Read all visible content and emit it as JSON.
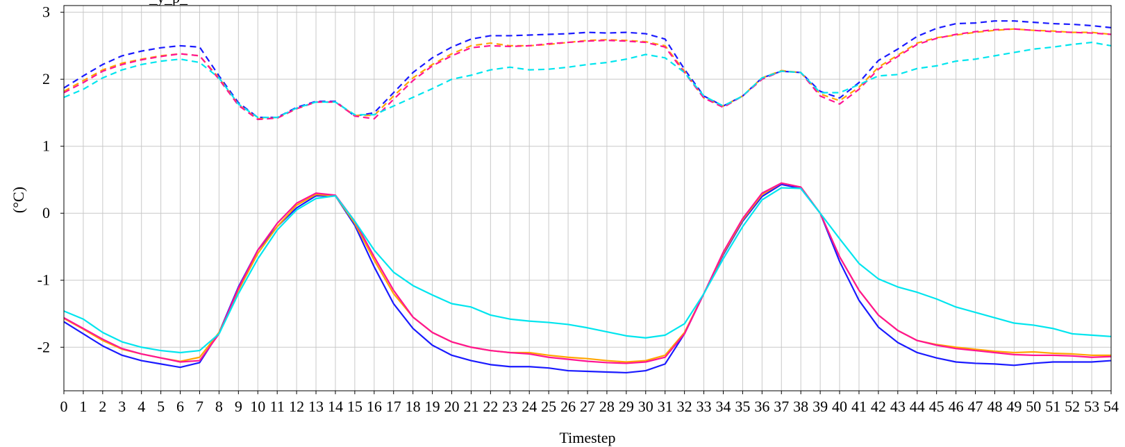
{
  "chart_data": {
    "type": "line",
    "title": "",
    "title_partial": "_y_p_",
    "xlabel": "Timestep",
    "ylabel": "(°C)",
    "x": [
      0,
      1,
      2,
      3,
      4,
      5,
      6,
      7,
      8,
      9,
      10,
      11,
      12,
      13,
      14,
      15,
      16,
      17,
      18,
      19,
      20,
      21,
      22,
      23,
      24,
      25,
      26,
      27,
      28,
      29,
      30,
      31,
      32,
      33,
      34,
      35,
      36,
      37,
      38,
      39,
      40,
      41,
      42,
      43,
      44,
      45,
      46,
      47,
      48,
      49,
      50,
      51,
      52,
      53,
      54
    ],
    "xlim": [
      0,
      54
    ],
    "ylim": [
      -2.65,
      3.1
    ],
    "yticks": [
      -2,
      -1,
      0,
      1,
      2,
      3
    ],
    "grid": true,
    "series": [
      {
        "color": "#1a1aff",
        "style": "dashed",
        "values": [
          1.87,
          2.05,
          2.22,
          2.35,
          2.42,
          2.47,
          2.5,
          2.48,
          2.05,
          1.65,
          1.43,
          1.43,
          1.58,
          1.67,
          1.67,
          1.45,
          1.5,
          1.8,
          2.1,
          2.32,
          2.48,
          2.6,
          2.65,
          2.65,
          2.66,
          2.67,
          2.68,
          2.7,
          2.69,
          2.7,
          2.68,
          2.6,
          2.15,
          1.75,
          1.6,
          1.75,
          2.02,
          2.12,
          2.1,
          1.82,
          1.72,
          1.95,
          2.28,
          2.45,
          2.64,
          2.76,
          2.83,
          2.84,
          2.87,
          2.87,
          2.85,
          2.83,
          2.82,
          2.8,
          2.77
        ]
      },
      {
        "color": "#ffa500",
        "style": "dashed",
        "values": [
          1.82,
          1.98,
          2.14,
          2.24,
          2.3,
          2.35,
          2.38,
          2.35,
          2.02,
          1.62,
          1.41,
          1.42,
          1.56,
          1.66,
          1.66,
          1.46,
          1.46,
          1.75,
          2.02,
          2.22,
          2.38,
          2.5,
          2.54,
          2.5,
          2.5,
          2.52,
          2.55,
          2.58,
          2.59,
          2.58,
          2.56,
          2.5,
          2.12,
          1.72,
          1.6,
          1.75,
          2.02,
          2.13,
          2.1,
          1.78,
          1.68,
          1.88,
          2.18,
          2.36,
          2.54,
          2.62,
          2.66,
          2.7,
          2.73,
          2.75,
          2.73,
          2.72,
          2.7,
          2.7,
          2.67
        ]
      },
      {
        "color": "#ff1493",
        "style": "dashed",
        "values": [
          1.8,
          1.95,
          2.12,
          2.22,
          2.29,
          2.34,
          2.38,
          2.35,
          2.0,
          1.61,
          1.4,
          1.42,
          1.56,
          1.66,
          1.66,
          1.45,
          1.41,
          1.7,
          1.98,
          2.2,
          2.35,
          2.47,
          2.5,
          2.49,
          2.5,
          2.53,
          2.55,
          2.57,
          2.58,
          2.57,
          2.55,
          2.48,
          2.1,
          1.72,
          1.58,
          1.75,
          2.0,
          2.12,
          2.1,
          1.75,
          1.63,
          1.85,
          2.15,
          2.34,
          2.52,
          2.61,
          2.67,
          2.71,
          2.74,
          2.75,
          2.73,
          2.71,
          2.7,
          2.69,
          2.67
        ]
      },
      {
        "color": "#00e5ee",
        "style": "dashed",
        "values": [
          1.73,
          1.85,
          2.02,
          2.14,
          2.22,
          2.27,
          2.3,
          2.25,
          2.02,
          1.63,
          1.43,
          1.43,
          1.57,
          1.66,
          1.66,
          1.47,
          1.47,
          1.6,
          1.73,
          1.86,
          2.0,
          2.06,
          2.14,
          2.18,
          2.14,
          2.15,
          2.18,
          2.22,
          2.25,
          2.3,
          2.37,
          2.32,
          2.1,
          1.75,
          1.6,
          1.75,
          2.02,
          2.12,
          2.1,
          1.8,
          1.8,
          1.92,
          2.05,
          2.07,
          2.16,
          2.2,
          2.27,
          2.3,
          2.35,
          2.4,
          2.45,
          2.48,
          2.52,
          2.55,
          2.5
        ]
      },
      {
        "color": "#1a1aff",
        "style": "solid",
        "values": [
          -1.62,
          -1.8,
          -1.98,
          -2.12,
          -2.2,
          -2.25,
          -2.3,
          -2.23,
          -1.78,
          -1.1,
          -0.55,
          -0.2,
          0.08,
          0.26,
          0.26,
          -0.18,
          -0.8,
          -1.35,
          -1.72,
          -1.97,
          -2.12,
          -2.2,
          -2.26,
          -2.29,
          -2.29,
          -2.31,
          -2.35,
          -2.36,
          -2.37,
          -2.38,
          -2.35,
          -2.25,
          -1.8,
          -1.2,
          -0.62,
          -0.12,
          0.25,
          0.43,
          0.37,
          0.0,
          -0.72,
          -1.3,
          -1.7,
          -1.93,
          -2.08,
          -2.16,
          -2.22,
          -2.24,
          -2.25,
          -2.27,
          -2.24,
          -2.22,
          -2.22,
          -2.22,
          -2.2
        ]
      },
      {
        "color": "#ffa500",
        "style": "solid",
        "values": [
          -1.57,
          -1.73,
          -1.9,
          -2.03,
          -2.1,
          -2.16,
          -2.21,
          -2.15,
          -1.78,
          -1.15,
          -0.6,
          -0.2,
          0.12,
          0.28,
          0.26,
          -0.15,
          -0.7,
          -1.2,
          -1.55,
          -1.78,
          -1.92,
          -2.0,
          -2.05,
          -2.08,
          -2.08,
          -2.12,
          -2.15,
          -2.17,
          -2.2,
          -2.22,
          -2.2,
          -2.12,
          -1.78,
          -1.2,
          -0.6,
          -0.1,
          0.28,
          0.45,
          0.39,
          0.0,
          -0.65,
          -1.15,
          -1.52,
          -1.75,
          -1.9,
          -1.96,
          -2.0,
          -2.03,
          -2.06,
          -2.08,
          -2.07,
          -2.09,
          -2.1,
          -2.12,
          -2.12
        ]
      },
      {
        "color": "#ff1493",
        "style": "solid",
        "values": [
          -1.56,
          -1.72,
          -1.88,
          -2.02,
          -2.1,
          -2.16,
          -2.22,
          -2.2,
          -1.8,
          -1.12,
          -0.55,
          -0.15,
          0.15,
          0.3,
          0.27,
          -0.12,
          -0.65,
          -1.15,
          -1.55,
          -1.78,
          -1.92,
          -2.0,
          -2.05,
          -2.08,
          -2.1,
          -2.15,
          -2.18,
          -2.21,
          -2.23,
          -2.24,
          -2.22,
          -2.15,
          -1.8,
          -1.2,
          -0.58,
          -0.08,
          0.3,
          0.45,
          0.39,
          0.0,
          -0.65,
          -1.15,
          -1.52,
          -1.75,
          -1.9,
          -1.97,
          -2.02,
          -2.05,
          -2.08,
          -2.11,
          -2.12,
          -2.12,
          -2.13,
          -2.15,
          -2.14
        ]
      },
      {
        "color": "#00e5ee",
        "style": "solid",
        "values": [
          -1.46,
          -1.58,
          -1.78,
          -1.92,
          -2.0,
          -2.05,
          -2.08,
          -2.05,
          -1.8,
          -1.2,
          -0.68,
          -0.25,
          0.05,
          0.22,
          0.26,
          -0.12,
          -0.55,
          -0.88,
          -1.08,
          -1.22,
          -1.35,
          -1.4,
          -1.52,
          -1.58,
          -1.61,
          -1.63,
          -1.66,
          -1.71,
          -1.77,
          -1.83,
          -1.86,
          -1.82,
          -1.65,
          -1.2,
          -0.68,
          -0.2,
          0.2,
          0.38,
          0.37,
          0.0,
          -0.38,
          -0.75,
          -0.98,
          -1.1,
          -1.18,
          -1.28,
          -1.4,
          -1.48,
          -1.56,
          -1.64,
          -1.67,
          -1.72,
          -1.8,
          -1.82,
          -1.84
        ]
      }
    ]
  }
}
